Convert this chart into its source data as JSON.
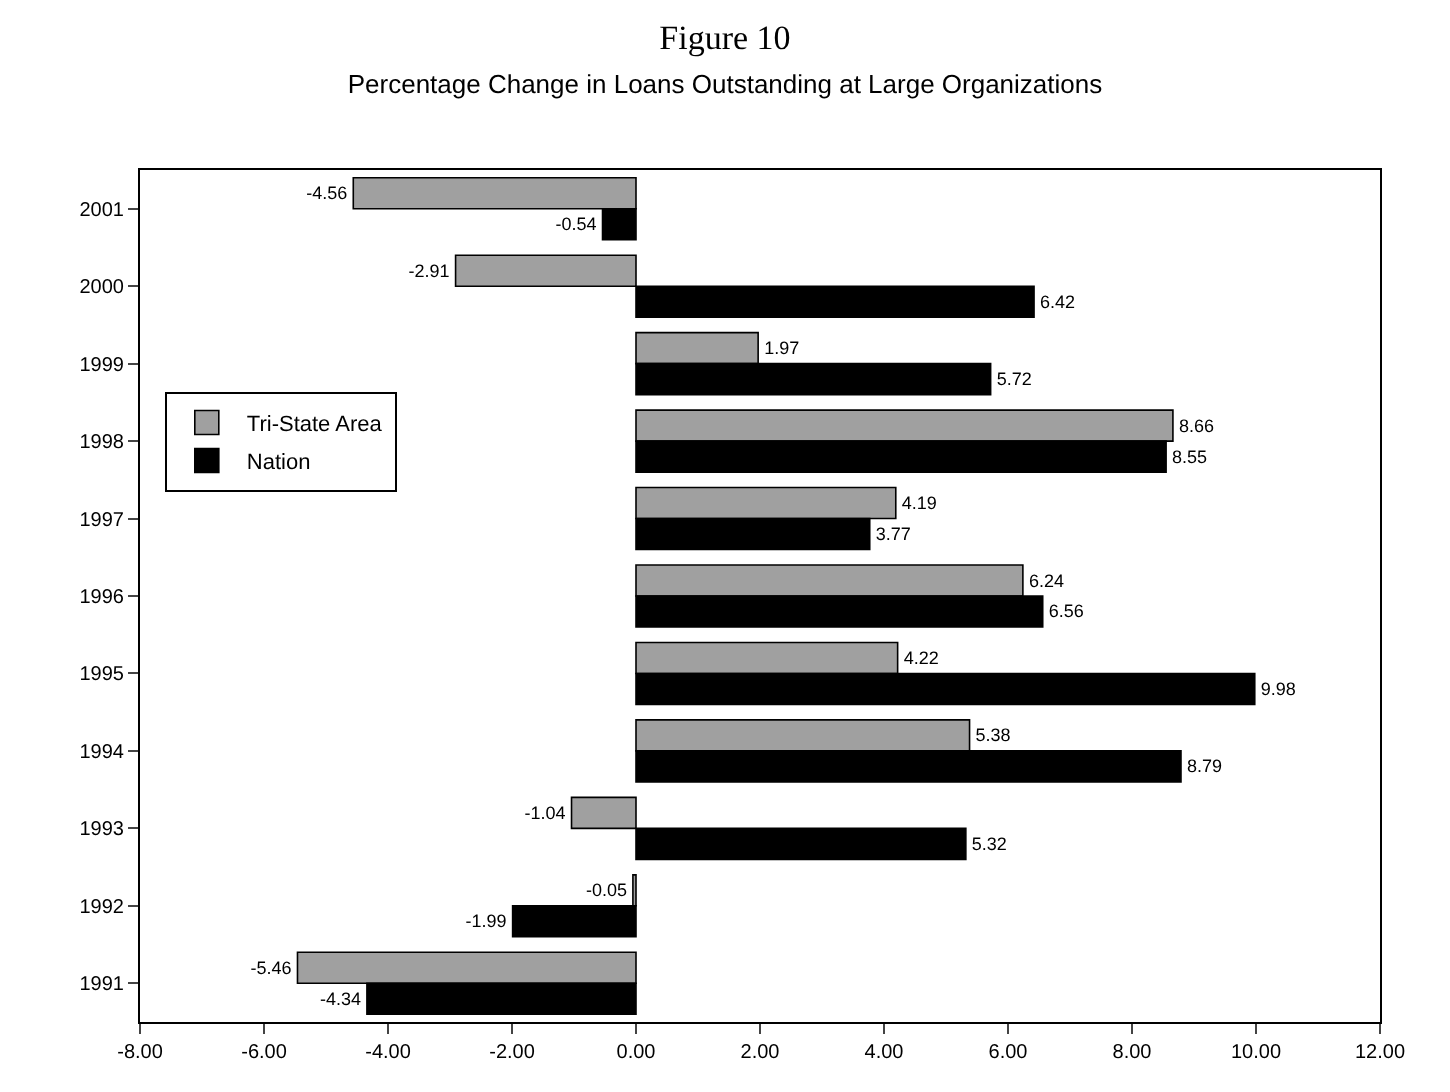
{
  "chart_data": {
    "type": "bar",
    "orientation": "horizontal",
    "title": "Figure 10",
    "subtitle": "Percentage Change in Loans Outstanding at Large Organizations",
    "categories": [
      "2001",
      "2000",
      "1999",
      "1998",
      "1997",
      "1996",
      "1995",
      "1994",
      "1993",
      "1992",
      "1991"
    ],
    "series": [
      {
        "name": "Tri-State Area",
        "color": "#a0a0a0",
        "values": [
          -4.56,
          -2.91,
          1.97,
          8.66,
          4.19,
          6.24,
          4.22,
          5.38,
          -1.04,
          -0.05,
          -5.46
        ],
        "value_labels": [
          "-4.56",
          "-2.91",
          "1.97",
          "8.66",
          "4.19",
          "6.24",
          "4.22",
          "5.38",
          "-1.04",
          "-0.05",
          "-5.46"
        ]
      },
      {
        "name": "Nation",
        "color": "#000000",
        "values": [
          -0.54,
          6.42,
          5.72,
          8.55,
          3.77,
          6.56,
          9.98,
          8.79,
          5.32,
          -1.99,
          -4.34
        ],
        "value_labels": [
          "-0.54",
          "6.42",
          "5.72",
          "8.55",
          "3.77",
          "6.56",
          "9.98",
          "8.79",
          "5.32",
          "-1.99",
          "-4.34"
        ]
      }
    ],
    "xlim": [
      -8,
      12
    ],
    "xticks": [
      {
        "value": -8,
        "label": "-8.00"
      },
      {
        "value": -6,
        "label": "-6.00"
      },
      {
        "value": -4,
        "label": "-4.00"
      },
      {
        "value": -2,
        "label": "-2.00"
      },
      {
        "value": 0,
        "label": "0.00"
      },
      {
        "value": 2,
        "label": "2.00"
      },
      {
        "value": 4,
        "label": "4.00"
      },
      {
        "value": 6,
        "label": "6.00"
      },
      {
        "value": 8,
        "label": "8.00"
      },
      {
        "value": 10,
        "label": "10.00"
      },
      {
        "value": 12,
        "label": "12.00"
      }
    ],
    "legend": "top left"
  }
}
